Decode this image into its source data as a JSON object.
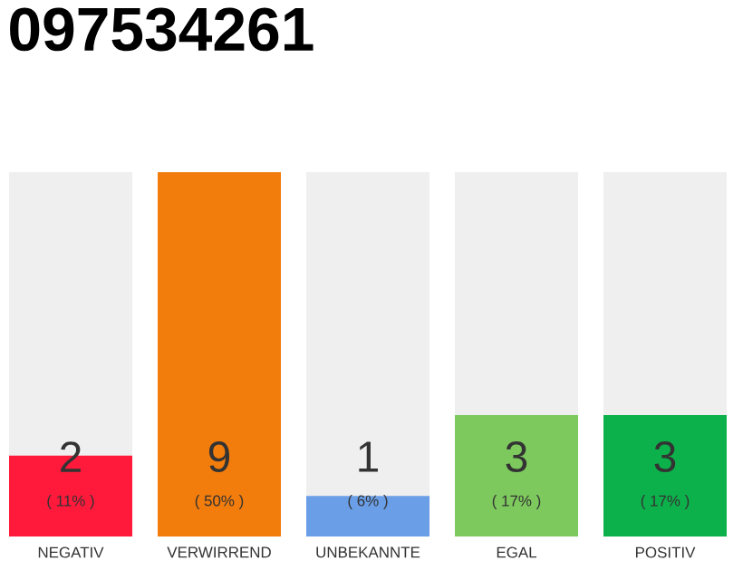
{
  "chart_data": {
    "type": "bar",
    "title": "097534261",
    "categories": [
      "NEGATIV",
      "VERWIRREND",
      "UNBEKANNTE",
      "EGAL",
      "POSITIV"
    ],
    "values": [
      2,
      9,
      1,
      3,
      3
    ],
    "colors": [
      "#ff1a3c",
      "#f27c0c",
      "#6a9fe8",
      "#7dc95e",
      "#0db14b"
    ],
    "data_labels": true,
    "annotations": [
      "( 11% )",
      "( 50% )",
      "( 6% )",
      "( 17% )",
      "( 17% )"
    ],
    "tick_labels": "x"
  }
}
